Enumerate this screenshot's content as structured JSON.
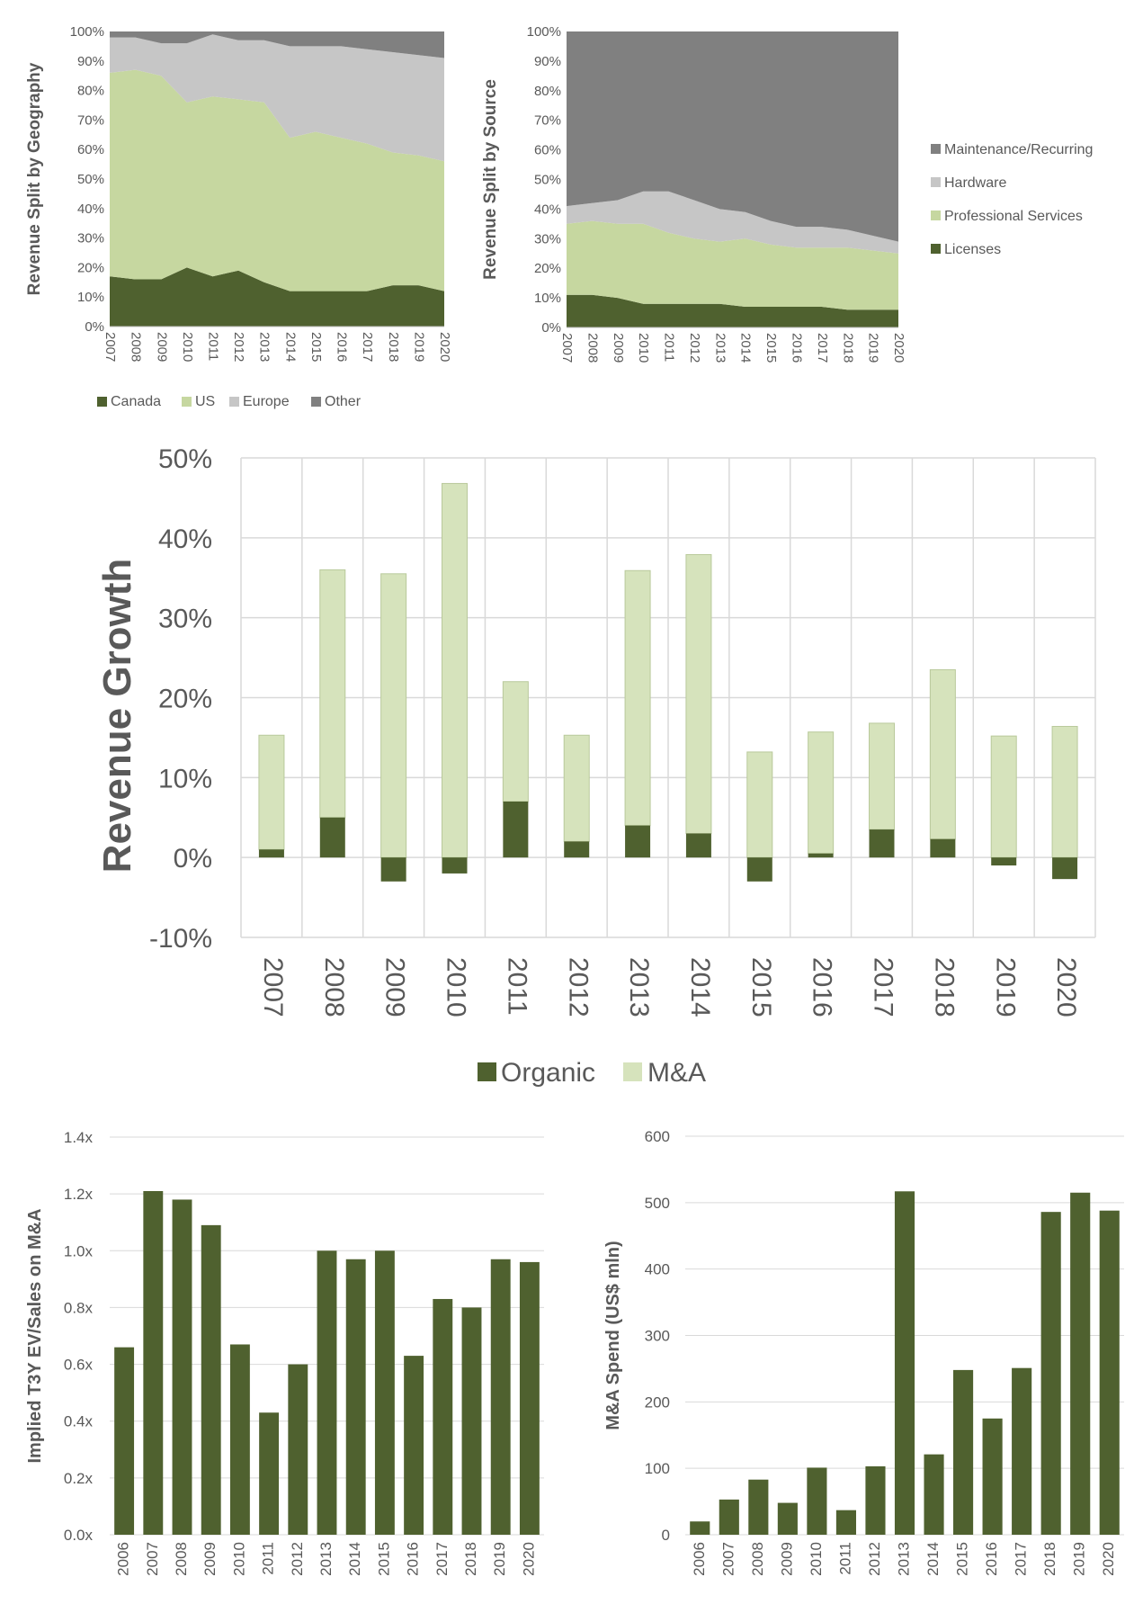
{
  "colors": {
    "dark_green": "#4f612f",
    "light_green": "#c6d7a0",
    "pale_green": "#d6e3bc",
    "light_gray": "#c6c6c6",
    "dark_gray": "#808080",
    "grid": "#d9d9d9",
    "text": "#595959"
  },
  "chart_data": [
    {
      "id": "geo",
      "type": "area",
      "stacked": true,
      "ylabel": "Revenue Split by Geography",
      "ylim": [
        0,
        100
      ],
      "yticks": [
        "0%",
        "10%",
        "20%",
        "30%",
        "40%",
        "50%",
        "60%",
        "70%",
        "80%",
        "90%",
        "100%"
      ],
      "categories": [
        "2007",
        "2008",
        "2009",
        "2010",
        "2011",
        "2012",
        "2013",
        "2014",
        "2015",
        "2016",
        "2017",
        "2018",
        "2019",
        "2020"
      ],
      "series": [
        {
          "name": "Canada",
          "color": "#4f612f",
          "values": [
            17,
            16,
            16,
            20,
            17,
            19,
            15,
            12,
            12,
            12,
            12,
            14,
            14,
            12
          ]
        },
        {
          "name": "US",
          "color": "#c6d7a0",
          "values": [
            69,
            71,
            69,
            56,
            61,
            58,
            61,
            52,
            54,
            52,
            50,
            45,
            44,
            44
          ]
        },
        {
          "name": "Europe",
          "color": "#c6c6c6",
          "values": [
            12,
            11,
            11,
            20,
            21,
            20,
            21,
            31,
            29,
            31,
            32,
            34,
            34,
            35
          ]
        },
        {
          "name": "Other",
          "color": "#808080",
          "values": [
            2,
            2,
            4,
            4,
            1,
            3,
            3,
            5,
            5,
            5,
            6,
            7,
            8,
            9
          ]
        }
      ],
      "legend": "bottom-left"
    },
    {
      "id": "source",
      "type": "area",
      "stacked": true,
      "ylabel": "Revenue Split by Source",
      "ylim": [
        0,
        100
      ],
      "yticks": [
        "0%",
        "10%",
        "20%",
        "30%",
        "40%",
        "50%",
        "60%",
        "70%",
        "80%",
        "90%",
        "100%"
      ],
      "categories": [
        "2007",
        "2008",
        "2009",
        "2010",
        "2011",
        "2012",
        "2013",
        "2014",
        "2015",
        "2016",
        "2017",
        "2018",
        "2019",
        "2020"
      ],
      "series": [
        {
          "name": "Licenses",
          "color": "#4f612f",
          "values": [
            11,
            11,
            10,
            8,
            8,
            8,
            8,
            7,
            7,
            7,
            7,
            6,
            6,
            6
          ]
        },
        {
          "name": "Professional Services",
          "color": "#c6d7a0",
          "values": [
            24,
            25,
            25,
            27,
            24,
            22,
            21,
            23,
            21,
            20,
            20,
            21,
            20,
            19
          ]
        },
        {
          "name": "Hardware",
          "color": "#c6c6c6",
          "values": [
            6,
            6,
            8,
            11,
            14,
            13,
            11,
            9,
            8,
            7,
            7,
            6,
            5,
            4
          ]
        },
        {
          "name": "Maintenance/Recurring",
          "color": "#808080",
          "values": [
            59,
            58,
            57,
            54,
            54,
            57,
            60,
            61,
            64,
            66,
            66,
            67,
            69,
            71
          ]
        }
      ],
      "legend": "right"
    },
    {
      "id": "growth",
      "type": "bar",
      "stacked": true,
      "ylabel": "Revenue Growth",
      "ylim": [
        -10,
        50
      ],
      "yticks": [
        "-10%",
        "0%",
        "10%",
        "20%",
        "30%",
        "40%",
        "50%"
      ],
      "grid": true,
      "categories": [
        "2007",
        "2008",
        "2009",
        "2010",
        "2011",
        "2012",
        "2013",
        "2014",
        "2015",
        "2016",
        "2017",
        "2018",
        "2019",
        "2020"
      ],
      "series": [
        {
          "name": "Organic",
          "color": "#4f612f",
          "values": [
            1,
            5,
            -3,
            -2,
            7,
            2,
            4,
            3,
            -3,
            0.5,
            3.5,
            2.3,
            -1,
            -2.7
          ]
        },
        {
          "name": "M&A",
          "color": "#d6e3bc",
          "values": [
            14.3,
            31,
            35.5,
            46.8,
            15,
            13.3,
            31.9,
            34.9,
            13.2,
            15.2,
            13.3,
            21.2,
            15.2,
            16.4
          ]
        }
      ],
      "legend": "bottom"
    },
    {
      "id": "evsales",
      "type": "bar",
      "ylabel": "Implied T3Y EV/Sales on M&A",
      "ylim": [
        0,
        1.4
      ],
      "yticks": [
        "0.0x",
        "0.2x",
        "0.4x",
        "0.6x",
        "0.8x",
        "1.0x",
        "1.2x",
        "1.4x"
      ],
      "grid": true,
      "categories": [
        "2006",
        "2007",
        "2008",
        "2009",
        "2010",
        "2011",
        "2012",
        "2013",
        "2014",
        "2015",
        "2016",
        "2017",
        "2018",
        "2019",
        "2020"
      ],
      "values": [
        0.66,
        1.21,
        1.18,
        1.09,
        0.67,
        0.43,
        0.6,
        1.0,
        0.97,
        1.0,
        0.63,
        0.83,
        0.8,
        0.97,
        0.96
      ]
    },
    {
      "id": "spend",
      "type": "bar",
      "ylabel": "M&A Spend (US$ mln)",
      "ylim": [
        0,
        600
      ],
      "yticks": [
        "0",
        "100",
        "200",
        "300",
        "400",
        "500",
        "600"
      ],
      "grid": true,
      "categories": [
        "2006",
        "2007",
        "2008",
        "2009",
        "2010",
        "2011",
        "2012",
        "2013",
        "2014",
        "2015",
        "2016",
        "2017",
        "2018",
        "2019",
        "2020"
      ],
      "values": [
        20,
        53,
        83,
        48,
        101,
        37,
        103,
        517,
        121,
        248,
        175,
        251,
        486,
        515,
        488
      ]
    }
  ]
}
